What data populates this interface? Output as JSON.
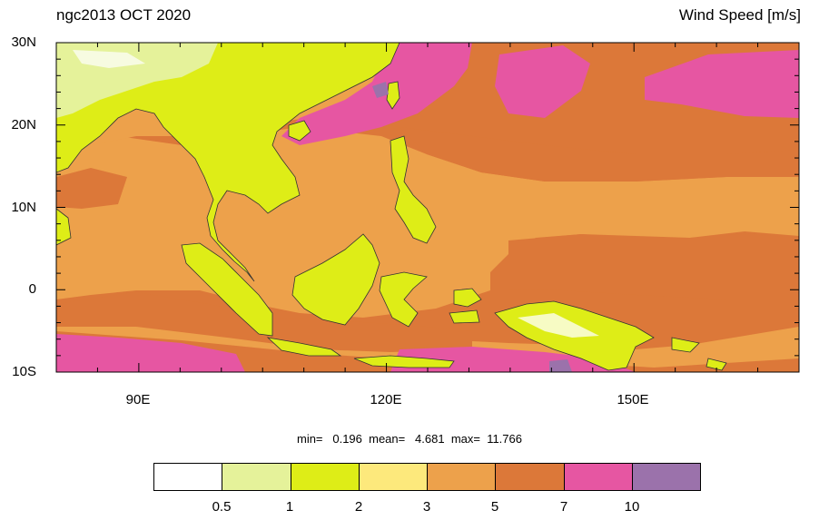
{
  "title": {
    "left": "ngc2013 OCT 2020",
    "right": "Wind Speed [m/s]"
  },
  "axes": {
    "lat_labels": [
      "30N",
      "20N",
      "10N",
      "0",
      "10S"
    ],
    "lat_values": [
      30,
      20,
      10,
      0,
      -10
    ],
    "lon_labels": [
      "90E",
      "120E",
      "150E"
    ],
    "lon_values": [
      90,
      120,
      150
    ],
    "lon_range": [
      80,
      170
    ],
    "lat_range": [
      -10,
      30
    ]
  },
  "stats": {
    "text": "min=   0.196  mean=   4.681  max=  11.766"
  },
  "colorbar": {
    "levels": [
      "0.5",
      "1",
      "2",
      "3",
      "5",
      "7",
      "10"
    ],
    "colors": [
      "#ffffff",
      "#e5f29a",
      "#deed17",
      "#fde97c",
      "#eda14b",
      "#dc7839",
      "#e656a2",
      "#9b72ab"
    ]
  }
}
